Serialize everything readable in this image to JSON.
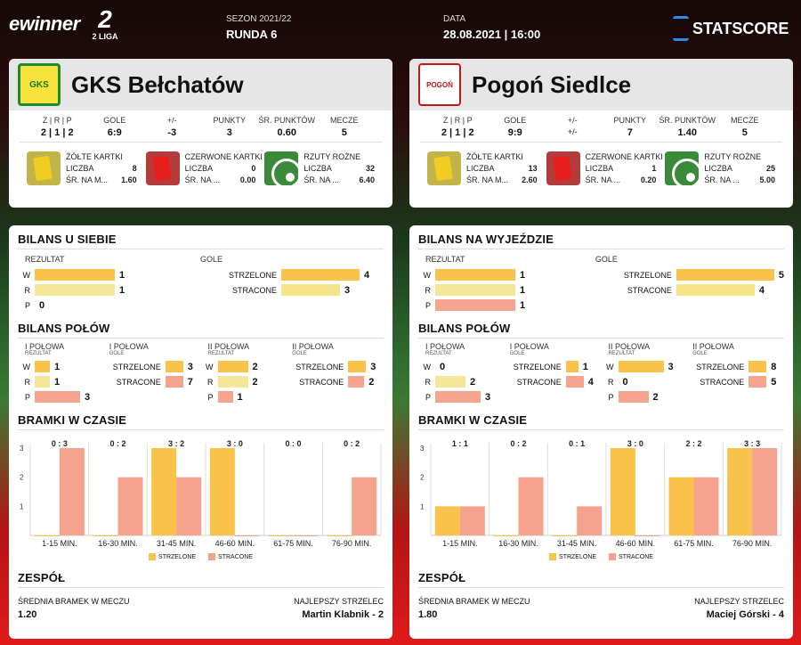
{
  "header": {
    "brand": "ewinner",
    "league_big": "2",
    "league_small": "2 LIGA",
    "season_label": "SEZON 2021/22",
    "round": "RUNDA 6",
    "date_label": "DATA",
    "date": "28.08.2021 | 16:00",
    "provider": "STATSCORE"
  },
  "stat_labels": {
    "wdl": "Z | R | P",
    "goals": "GOLE",
    "diff": "+/-",
    "points": "PUNKTY",
    "avg_points": "ŚR. PUNKTÓW",
    "matches": "MECZE",
    "yellow": "ŻÓŁTE KARTKI",
    "red": "CZERWONE KARTKI",
    "corners": "RZUTY ROŻNE",
    "count": "LICZBA",
    "avg": "ŚR. NA M...",
    "avg2": "ŚR. NA ..."
  },
  "sections": {
    "home_balance": "BILANS U SIEBIE",
    "away_balance": "BILANS NA WYJEŹDZIE",
    "halves": "BILANS POŁÓW",
    "time_goals": "BRAMKI W CZASIE",
    "team": "ZESPÓŁ",
    "result": "REZULTAT",
    "goals": "GOLE",
    "scored": "STRZELONE",
    "conceded": "STRACONE",
    "first_half": "I POŁOWA",
    "second_half": "II POŁOWA",
    "result_small": "REZULTAT",
    "goals_small": "GOLE",
    "avg_goals": "ŚREDNIA BRAMEK W MECZU",
    "top_scorer": "NAJLEPSZY STRZELEC",
    "legend_scored": "STRZELONE",
    "legend_conceded": "STRACONE"
  },
  "colors": {
    "scored": "#f9c24a",
    "conceded": "#f5a38f",
    "draw": "#f4e79a"
  },
  "intervals": [
    "1-15 MIN.",
    "16-30 MIN.",
    "31-45 MIN.",
    "46-60 MIN.",
    "61-75 MIN.",
    "76-90 MIN."
  ],
  "teams": [
    {
      "name": "GKS Bełchatów",
      "crest_text": "GKS",
      "wdl": "2 | 1 | 2",
      "goals": "6:9",
      "diff": "-3",
      "points": "3",
      "avg_points": "0.60",
      "matches": "5",
      "yellow_count": "8",
      "yellow_avg": "1.60",
      "red_count": "0",
      "red_avg": "0.00",
      "corners_count": "32",
      "corners_avg": "6.40",
      "result": {
        "W": 1,
        "R": 1,
        "P": 0
      },
      "goals_scored": 4,
      "goals_conceded": 3,
      "h1_result": {
        "W": 1,
        "R": 1,
        "P": 3
      },
      "h1_scored": 3,
      "h1_conceded": 7,
      "h2_result": {
        "W": 2,
        "R": 2,
        "P": 1
      },
      "h2_scored": 3,
      "h2_conceded": 2,
      "time_labels": [
        "0 : 3",
        "0 : 2",
        "3 : 2",
        "3 : 0",
        "0 : 0",
        "0 : 2"
      ],
      "time_scored": [
        0,
        0,
        3,
        3,
        0,
        0
      ],
      "time_conceded": [
        3,
        2,
        2,
        0,
        0,
        2
      ],
      "avg_goals": "1.20",
      "top_scorer": "Martin Klabnik - 2"
    },
    {
      "name": "Pogoń Siedlce",
      "crest_text": "POGOŃ",
      "wdl": "2 | 1 | 2",
      "goals": "9:9",
      "diff": "+/-",
      "points": "7",
      "avg_points": "1.40",
      "matches": "5",
      "yellow_count": "13",
      "yellow_avg": "2.60",
      "red_count": "1",
      "red_avg": "0.20",
      "corners_count": "25",
      "corners_avg": "5.00",
      "result": {
        "W": 1,
        "R": 1,
        "P": 1
      },
      "goals_scored": 5,
      "goals_conceded": 4,
      "h1_result": {
        "W": 0,
        "R": 2,
        "P": 3
      },
      "h1_scored": 1,
      "h1_conceded": 4,
      "h2_result": {
        "W": 3,
        "R": 0,
        "P": 2
      },
      "h2_scored": 8,
      "h2_conceded": 5,
      "time_labels": [
        "1 : 1",
        "0 : 2",
        "0 : 1",
        "3 : 0",
        "2 : 2",
        "3 : 3"
      ],
      "time_scored": [
        1,
        0,
        0,
        3,
        2,
        3
      ],
      "time_conceded": [
        1,
        2,
        1,
        0,
        2,
        3
      ],
      "avg_goals": "1.80",
      "top_scorer": "Maciej Górski - 4"
    }
  ],
  "chart_data": [
    {
      "type": "bar",
      "title": "BRAMKI W CZASIE",
      "categories": [
        "1-15 MIN.",
        "16-30 MIN.",
        "31-45 MIN.",
        "46-60 MIN.",
        "61-75 MIN.",
        "76-90 MIN."
      ],
      "series": [
        {
          "name": "STRZELONE",
          "values": [
            0,
            0,
            3,
            3,
            0,
            0
          ]
        },
        {
          "name": "STRACONE",
          "values": [
            3,
            2,
            2,
            0,
            0,
            2
          ]
        }
      ],
      "ylim": [
        0,
        3
      ]
    },
    {
      "type": "bar",
      "title": "BRAMKI W CZASIE",
      "categories": [
        "1-15 MIN.",
        "16-30 MIN.",
        "31-45 MIN.",
        "46-60 MIN.",
        "61-75 MIN.",
        "76-90 MIN."
      ],
      "series": [
        {
          "name": "STRZELONE",
          "values": [
            1,
            0,
            0,
            3,
            2,
            3
          ]
        },
        {
          "name": "STRACONE",
          "values": [
            1,
            2,
            1,
            0,
            2,
            3
          ]
        }
      ],
      "ylim": [
        0,
        3
      ]
    }
  ]
}
